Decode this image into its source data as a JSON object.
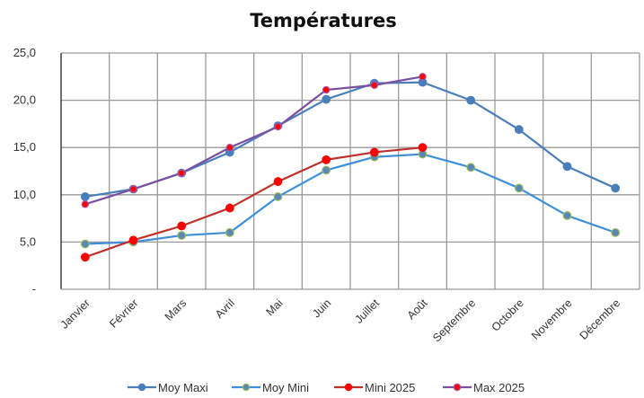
{
  "chart_data": {
    "type": "line",
    "title": "Températures",
    "xlabel": "",
    "ylabel": "",
    "ylim": [
      0,
      25
    ],
    "yticks": [
      0,
      5,
      10,
      15,
      20,
      25
    ],
    "ytick_labels": [
      "-",
      "5,0",
      "10,0",
      "15,0",
      "20,0",
      "25,0"
    ],
    "grid": true,
    "legend_position": "bottom",
    "categories": [
      "Janvier",
      "Février",
      "Mars",
      "Avril",
      "Mai",
      "Juin",
      "Juillet",
      "Août",
      "Septembre",
      "Octobre",
      "Novembre",
      "Décembre"
    ],
    "series": [
      {
        "name": "Moy Maxi",
        "color": "#4a7ebb",
        "marker_color": "#4a7ebb",
        "marker_edge": "#4a7ebb",
        "values": [
          9.8,
          10.6,
          12.3,
          14.5,
          17.3,
          20.1,
          21.8,
          21.9,
          20.0,
          16.9,
          13.0,
          10.7
        ]
      },
      {
        "name": "Moy Mini",
        "color": "#3d8fd9",
        "marker_color": "#5b86b5",
        "marker_edge": "#9bbb59",
        "values": [
          4.8,
          5.0,
          5.7,
          6.0,
          9.8,
          12.6,
          14.0,
          14.3,
          12.9,
          10.7,
          7.8,
          6.0
        ]
      },
      {
        "name": "Mini 2025",
        "color": "#c0302b",
        "marker_color": "#ff0000",
        "marker_edge": "#ff0000",
        "values": [
          3.4,
          5.2,
          6.7,
          8.6,
          11.4,
          13.7,
          14.5,
          15.0,
          null,
          null,
          null,
          null
        ]
      },
      {
        "name": "Max 2025",
        "color": "#7b4fa0",
        "marker_color": "#ff0000",
        "marker_edge": "#b04fa0",
        "values": [
          9.0,
          10.6,
          12.3,
          15.0,
          17.2,
          21.1,
          21.6,
          22.5,
          null,
          null,
          null,
          null
        ]
      }
    ]
  }
}
